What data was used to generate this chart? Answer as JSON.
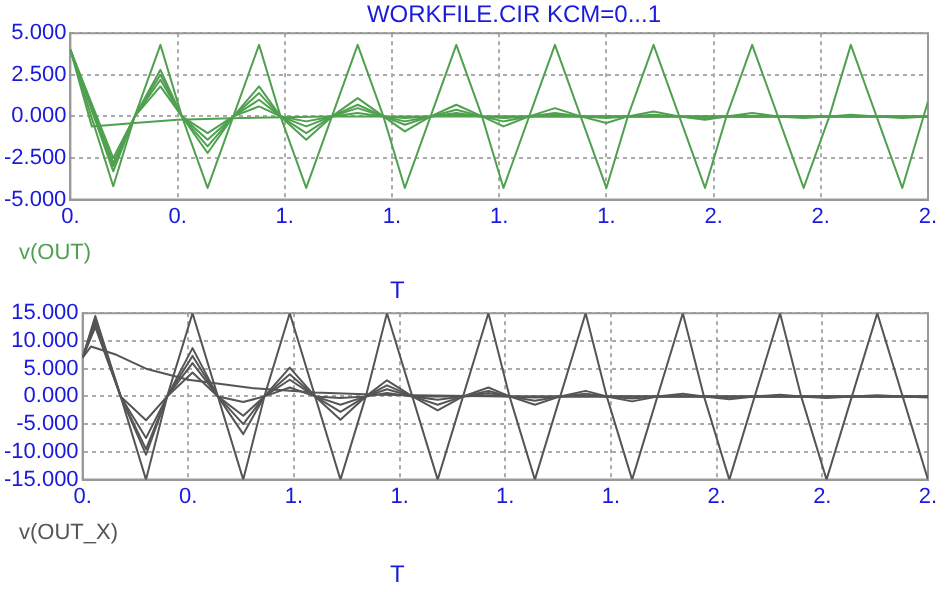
{
  "chart_data": [
    {
      "type": "line",
      "title": "WORKFILE.CIR KCM=0...1",
      "xlabel": "T",
      "xlim": [
        0,
        2
      ],
      "ylim": [
        -5,
        5
      ],
      "xticks": [
        {
          "value": 0,
          "label": "0."
        },
        {
          "value": 0.25,
          "label": "0."
        },
        {
          "value": 0.5,
          "label": "1."
        },
        {
          "value": 0.75,
          "label": "1."
        },
        {
          "value": 1,
          "label": "1."
        },
        {
          "value": 1.25,
          "label": "1."
        },
        {
          "value": 1.5,
          "label": "2."
        },
        {
          "value": 1.75,
          "label": "2."
        },
        {
          "value": 2,
          "label": "2."
        }
      ],
      "yticks": [
        {
          "value": -5,
          "label": "-5.000"
        },
        {
          "value": -2.5,
          "label": "-2.500"
        },
        {
          "value": 0,
          "label": "0.000"
        },
        {
          "value": 2.5,
          "label": "2.500"
        },
        {
          "value": 5,
          "label": "5.000"
        }
      ],
      "grid": true,
      "legend": "bottom left",
      "series": [
        {
          "name": "v(OUT)",
          "color": "#4fa04f",
          "x": [
            0,
            0.1,
            0.15,
            0.21,
            0.26,
            0.32,
            0.38,
            0.44,
            0.49,
            0.55,
            0.61,
            0.67,
            0.73,
            0.78,
            0.84,
            0.9,
            0.96,
            1.01,
            1.07,
            1.13,
            1.19,
            1.25,
            1.3,
            1.36,
            1.42,
            1.48,
            1.53,
            1.59,
            1.65,
            1.71,
            1.77,
            1.82,
            1.88,
            1.94,
            2
          ],
          "values": [
            4,
            -4.2,
            0,
            4.3,
            0,
            -4.3,
            0,
            4.3,
            0,
            -4.3,
            0,
            4.3,
            0,
            -4.3,
            0,
            4.3,
            0,
            -4.3,
            0,
            4.3,
            0,
            -4.3,
            0,
            4.3,
            0,
            -4.3,
            0,
            4.3,
            0,
            -4.3,
            0,
            4.3,
            0,
            -4.3,
            0.9
          ]
        },
        {
          "color": "#4fa04f",
          "x": [
            0,
            0.1,
            0.15,
            0.21,
            0.26,
            0.32,
            0.38,
            0.44,
            0.49,
            0.55,
            0.61,
            0.67,
            0.73,
            0.78,
            0.84,
            0.9,
            0.96,
            1.01,
            1.07,
            1.13,
            1.19,
            1.25,
            1.3,
            1.36,
            1.42,
            1.48,
            1.53,
            1.59,
            1.65,
            1.71,
            1.77,
            1.82,
            1.88,
            1.94,
            2
          ],
          "values": [
            4,
            -3.3,
            0,
            2.8,
            0,
            -2.2,
            0,
            1.8,
            0,
            -1.4,
            0,
            1.1,
            0,
            -0.9,
            0,
            0.7,
            0,
            -0.6,
            0,
            0.5,
            0,
            -0.4,
            0,
            0.3,
            0,
            -0.2,
            0,
            0.2,
            0,
            -0.1,
            0,
            0.1,
            0,
            -0.1,
            0
          ]
        },
        {
          "color": "#4fa04f",
          "x": [
            0,
            0.1,
            0.15,
            0.21,
            0.26,
            0.32,
            0.38,
            0.44,
            0.49,
            0.55,
            0.61,
            0.67,
            0.73,
            0.78,
            0.84,
            0.9,
            0.96,
            1.01,
            1.07,
            1.13,
            1.19,
            1.25,
            1.3,
            1.36,
            1.42,
            1.48,
            1.53,
            1.59,
            1.65,
            1.71,
            1.77,
            1.82,
            1.88,
            1.94,
            2
          ],
          "values": [
            4,
            -3,
            0,
            2.5,
            0,
            -1.8,
            0,
            1.4,
            0,
            -1,
            0,
            0.7,
            0,
            -0.5,
            0,
            0.4,
            0,
            -0.3,
            0,
            0.2,
            0,
            -0.1,
            0,
            0.1,
            0,
            -0.1,
            0,
            0,
            0,
            0,
            0,
            0,
            0,
            0,
            0
          ]
        },
        {
          "color": "#4fa04f",
          "x": [
            0,
            0.1,
            0.15,
            0.21,
            0.26,
            0.32,
            0.38,
            0.44,
            0.49,
            0.55,
            0.61,
            0.67,
            0.73,
            0.78,
            0.84,
            0.9,
            0.96,
            1.01,
            1.07,
            1.13,
            1.19,
            1.25,
            1.3,
            1.36,
            1.42,
            1.48,
            1.53,
            1.59,
            1.65,
            1.71,
            1.77,
            1.82,
            1.88,
            1.94,
            2
          ],
          "values": [
            4,
            -2.8,
            0,
            2.2,
            0,
            -1.4,
            0,
            1,
            0,
            -0.6,
            0,
            0.5,
            0,
            -0.3,
            0,
            0.2,
            0,
            -0.1,
            0,
            0.1,
            0,
            0,
            0,
            0,
            0,
            0,
            0,
            0,
            0,
            0,
            0,
            0,
            0,
            0,
            0
          ]
        },
        {
          "color": "#4fa04f",
          "x": [
            0,
            0.1,
            0.15,
            0.21,
            0.26,
            0.32,
            0.38,
            0.44,
            0.49,
            0.55,
            0.61,
            0.67,
            0.73,
            0.78,
            0.84,
            0.9,
            0.96,
            1.01,
            1.07,
            1.13,
            1.19,
            1.25,
            1.3,
            1.36,
            1.42,
            1.48,
            1.53,
            1.59,
            1.65,
            1.71,
            1.77,
            1.82,
            1.88,
            1.94,
            2
          ],
          "values": [
            4,
            -2.5,
            0,
            1.8,
            0,
            -1,
            0,
            0.6,
            0,
            -0.3,
            0,
            0.2,
            0,
            -0.1,
            0,
            0.1,
            0,
            0,
            0,
            0,
            0,
            0,
            0,
            0,
            0,
            0,
            0,
            0,
            0,
            0,
            0,
            0,
            0,
            0,
            0
          ]
        },
        {
          "color": "#4fa04f",
          "x": [
            0,
            0.05,
            0.1,
            0.15,
            0.25,
            0.4,
            0.6,
            0.8,
            1,
            2
          ],
          "values": [
            4,
            -0.6,
            -0.5,
            -0.4,
            -0.2,
            -0.1,
            0,
            0,
            0,
            0
          ]
        }
      ]
    },
    {
      "type": "line",
      "xlabel": "T",
      "xlim": [
        0,
        2
      ],
      "ylim": [
        -15,
        15
      ],
      "xticks": [
        {
          "value": 0,
          "label": "0."
        },
        {
          "value": 0.25,
          "label": "0."
        },
        {
          "value": 0.5,
          "label": "1."
        },
        {
          "value": 0.75,
          "label": "1."
        },
        {
          "value": 1,
          "label": "1."
        },
        {
          "value": 1.25,
          "label": "1."
        },
        {
          "value": 1.5,
          "label": "2."
        },
        {
          "value": 1.75,
          "label": "2."
        },
        {
          "value": 2,
          "label": "2."
        }
      ],
      "yticks": [
        {
          "value": -15,
          "label": "-15.000"
        },
        {
          "value": -10,
          "label": "-10.000"
        },
        {
          "value": -5,
          "label": "-5.000"
        },
        {
          "value": 0,
          "label": "0.000"
        },
        {
          "value": 5,
          "label": "5.000"
        },
        {
          "value": 10,
          "label": "10.000"
        },
        {
          "value": 15,
          "label": "15.000"
        }
      ],
      "grid": true,
      "legend": "bottom left",
      "series": [
        {
          "name": "v(OUT_X)",
          "color": "#555555",
          "x": [
            0,
            0.03,
            0.09,
            0.15,
            0.2,
            0.26,
            0.32,
            0.38,
            0.43,
            0.49,
            0.55,
            0.61,
            0.67,
            0.72,
            0.78,
            0.84,
            0.9,
            0.96,
            1.01,
            1.07,
            1.13,
            1.19,
            1.24,
            1.3,
            1.36,
            1.42,
            1.47,
            1.53,
            1.59,
            1.65,
            1.7,
            1.76,
            1.82,
            1.88,
            1.94,
            2
          ],
          "values": [
            7,
            14.5,
            0,
            -15,
            0,
            15,
            0,
            -15,
            0,
            15,
            0,
            -15,
            0,
            15,
            0,
            -15,
            0,
            15,
            0,
            -15,
            0,
            15,
            0,
            -15,
            0,
            15,
            0,
            -15,
            0,
            15,
            0,
            -15,
            0,
            15,
            0,
            -15
          ]
        },
        {
          "color": "#555555",
          "x": [
            0,
            0.03,
            0.09,
            0.15,
            0.2,
            0.26,
            0.32,
            0.38,
            0.43,
            0.49,
            0.55,
            0.61,
            0.67,
            0.72,
            0.78,
            0.84,
            0.9,
            0.96,
            1.01,
            1.07,
            1.13,
            1.19,
            1.24,
            1.3,
            1.36,
            1.42,
            1.47,
            1.53,
            1.59,
            1.65,
            1.7,
            1.76,
            1.82,
            1.88,
            1.94,
            2
          ],
          "values": [
            7,
            14,
            0,
            -10.5,
            0,
            8.7,
            0,
            -6.8,
            0,
            5.2,
            0,
            -4.2,
            0,
            2.9,
            0,
            -2.5,
            0,
            1.6,
            0,
            -1.5,
            0,
            1,
            0,
            -0.9,
            0,
            0.5,
            0,
            -0.5,
            0,
            0.3,
            0,
            -0.3,
            0,
            0.2,
            0,
            -0.2
          ]
        },
        {
          "color": "#555555",
          "x": [
            0,
            0.03,
            0.09,
            0.15,
            0.2,
            0.26,
            0.32,
            0.38,
            0.43,
            0.49,
            0.55,
            0.61,
            0.67,
            0.72,
            0.78,
            0.84,
            0.9,
            0.96,
            1.01,
            1.07,
            1.13,
            1.19,
            1.24,
            1.3,
            1.36,
            1.42,
            1.47,
            1.53,
            1.59,
            1.65,
            1.7,
            1.76,
            1.82,
            1.88,
            1.94,
            2
          ],
          "values": [
            7,
            13.5,
            0,
            -9.5,
            0,
            7.3,
            0,
            -5,
            0,
            4,
            0,
            -2.8,
            0,
            2,
            0,
            -1.5,
            0,
            1,
            0,
            -0.8,
            0,
            0.5,
            0,
            -0.4,
            0,
            0.2,
            0,
            -0.2,
            0,
            0,
            0,
            0,
            0,
            0,
            0,
            0
          ]
        },
        {
          "color": "#555555",
          "x": [
            0,
            0.03,
            0.09,
            0.15,
            0.2,
            0.26,
            0.32,
            0.38,
            0.43,
            0.49,
            0.55,
            0.61,
            0.67,
            0.72,
            0.78,
            0.84,
            0.9,
            0.96,
            1.01,
            1.07,
            1.13,
            1.19,
            1.24,
            1.3,
            1.36,
            1.42,
            1.47,
            1.53,
            1.59,
            1.65,
            1.7,
            1.76,
            1.82,
            1.88,
            1.94,
            2
          ],
          "values": [
            7,
            13,
            0,
            -7.5,
            0,
            6,
            0,
            -3.5,
            0,
            3,
            0,
            -1.5,
            0,
            1.3,
            0,
            -0.6,
            0,
            0.6,
            0,
            -0.2,
            0,
            0.2,
            0,
            0,
            0,
            0,
            0,
            0,
            0,
            0,
            0,
            0,
            0,
            0,
            0,
            0
          ]
        },
        {
          "color": "#555555",
          "x": [
            0,
            0.03,
            0.09,
            0.15,
            0.2,
            0.26,
            0.32,
            0.38,
            0.43,
            0.49,
            0.55,
            0.61,
            0.67,
            0.72,
            0.78,
            0.84,
            0.9,
            0.96,
            1.01,
            1.07,
            1.13,
            1.19,
            1.24,
            1.3,
            1.36,
            1.42,
            1.47,
            1.53,
            1.59,
            1.65,
            1.7,
            1.76,
            1.82,
            1.88,
            1.94,
            2
          ],
          "values": [
            7,
            12.5,
            0,
            -4.3,
            0,
            4.3,
            0,
            -1,
            0,
            1.6,
            0,
            -0.3,
            0,
            0.6,
            0,
            0,
            0,
            0.2,
            0,
            0,
            0,
            0,
            0,
            0,
            0,
            0,
            0,
            0,
            0,
            0,
            0,
            0,
            0,
            0,
            0,
            0
          ]
        },
        {
          "color": "#555555",
          "x": [
            0,
            0.02,
            0.08,
            0.15,
            0.25,
            0.4,
            0.55,
            0.7,
            1,
            2
          ],
          "values": [
            7,
            9,
            7.5,
            5,
            3,
            1.5,
            0.7,
            0.3,
            0,
            0
          ]
        }
      ]
    }
  ]
}
